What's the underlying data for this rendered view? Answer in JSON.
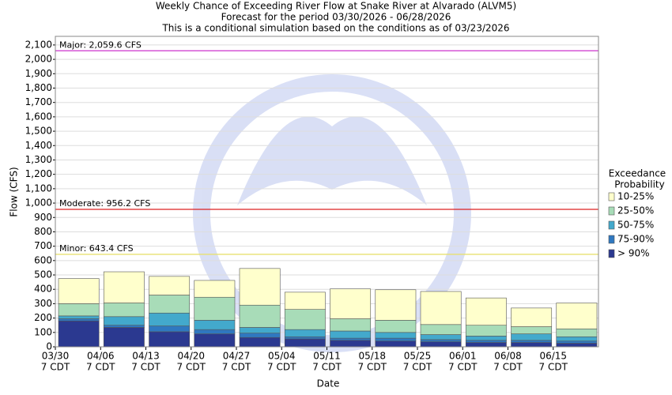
{
  "chart_data": {
    "type": "stacked_bar",
    "title": "Weekly Chance of Exceeding River Flow at Snake River at Alvarado (ALVM5)",
    "subtitles": [
      "Forecast for the period 03/30/2026 - 06/28/2026",
      "This is a conditional simulation based on the conditions as of 03/23/2026"
    ],
    "x_label": "Date",
    "y_label": "Flow (CFS)",
    "categories": [
      "03/30",
      "04/06",
      "04/13",
      "04/20",
      "04/27",
      "05/04",
      "05/11",
      "05/18",
      "05/25",
      "06/01",
      "06/08",
      "06/15"
    ],
    "time_label": "7 CDT",
    "legend_title": [
      "Exceedance",
      "Probability"
    ],
    "series": [
      {
        "name": "> 90%",
        "color": "#2b3990",
        "values": [
          180,
          135,
          105,
          90,
          65,
          55,
          45,
          40,
          35,
          30,
          30,
          25
        ]
      },
      {
        "name": "75-90%",
        "color": "#2f78c0",
        "values": [
          15,
          15,
          40,
          30,
          30,
          15,
          15,
          20,
          15,
          15,
          15,
          15
        ]
      },
      {
        "name": "50-75%",
        "color": "#43a9cc",
        "values": [
          20,
          60,
          90,
          65,
          40,
          50,
          50,
          40,
          35,
          30,
          45,
          30
        ]
      },
      {
        "name": "25-50%",
        "color": "#a8dcb8",
        "values": [
          85,
          95,
          125,
          160,
          155,
          140,
          85,
          85,
          70,
          75,
          50,
          55
        ]
      },
      {
        "name": "10-25%",
        "color": "#ffffcc",
        "values": [
          175,
          217,
          130,
          117,
          255,
          120,
          208,
          212,
          230,
          190,
          130,
          180
        ]
      }
    ],
    "thresholds": [
      {
        "label": "Major: 2,059.6 CFS",
        "value": 2059.6,
        "color": "#cc33cc"
      },
      {
        "label": "Moderate: 956.2 CFS",
        "value": 956.2,
        "color": "#dd2222"
      },
      {
        "label": "Minor: 643.4 CFS",
        "value": 643.4,
        "color": "#e8e070"
      }
    ],
    "ylim": [
      0,
      2160
    ],
    "yticks": [
      0,
      100,
      200,
      300,
      400,
      500,
      600,
      700,
      800,
      900,
      {
        "value": 1000,
        "label": "1,000"
      },
      {
        "value": 1100,
        "label": "1,100"
      },
      {
        "value": 1200,
        "label": "1,200"
      },
      {
        "value": 1300,
        "label": "1,300"
      },
      {
        "value": 1400,
        "label": "1,400"
      },
      {
        "value": 1500,
        "label": "1,500"
      },
      {
        "value": 1600,
        "label": "1,600"
      },
      {
        "value": 1700,
        "label": "1,700"
      },
      {
        "value": 1800,
        "label": "1,800"
      },
      {
        "value": 1900,
        "label": "1,900"
      },
      {
        "value": 2000,
        "label": "2,000"
      },
      {
        "value": 2100,
        "label": "2,100"
      }
    ],
    "grid": true
  }
}
